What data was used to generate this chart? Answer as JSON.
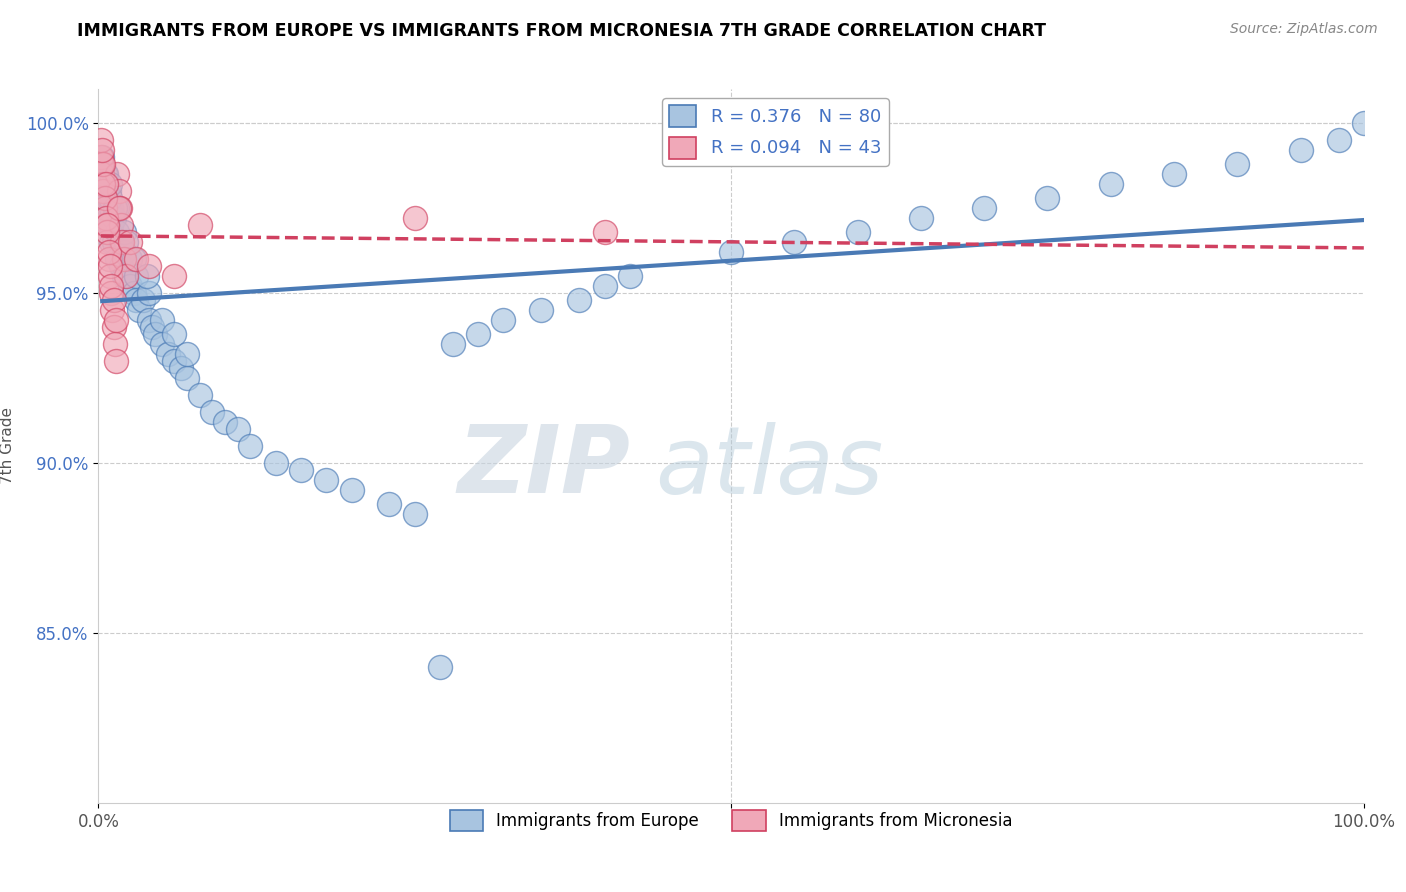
{
  "title": "IMMIGRANTS FROM EUROPE VS IMMIGRANTS FROM MICRONESIA 7TH GRADE CORRELATION CHART",
  "source": "Source: ZipAtlas.com",
  "ylabel": "7th Grade",
  "xlim": [
    0,
    1.0
  ],
  "ylim": [
    0.8,
    1.01
  ],
  "yticks": [
    0.85,
    0.9,
    0.95,
    1.0
  ],
  "ytick_labels": [
    "85.0%",
    "90.0%",
    "95.0%",
    "100.0%"
  ],
  "legend_europe_label": "Immigrants from Europe",
  "legend_micronesia_label": "Immigrants from Micronesia",
  "R_europe": 0.376,
  "N_europe": 80,
  "R_micronesia": 0.094,
  "N_micronesia": 43,
  "color_europe": "#a8c4e0",
  "color_micronesia": "#f0a8b8",
  "color_europe_line": "#4a7ab5",
  "color_micronesia_line": "#d04060",
  "watermark_zip": "ZIP",
  "watermark_atlas": "atlas",
  "europe_x": [
    0.005,
    0.005,
    0.005,
    0.008,
    0.008,
    0.008,
    0.01,
    0.01,
    0.01,
    0.012,
    0.012,
    0.015,
    0.015,
    0.015,
    0.018,
    0.018,
    0.02,
    0.02,
    0.02,
    0.022,
    0.025,
    0.025,
    0.028,
    0.03,
    0.03,
    0.032,
    0.035,
    0.04,
    0.04,
    0.042,
    0.045,
    0.05,
    0.05,
    0.055,
    0.06,
    0.06,
    0.065,
    0.07,
    0.07,
    0.08,
    0.09,
    0.1,
    0.11,
    0.12,
    0.14,
    0.16,
    0.18,
    0.2,
    0.23,
    0.25,
    0.28,
    0.3,
    0.32,
    0.35,
    0.38,
    0.4,
    0.42,
    0.5,
    0.55,
    0.6,
    0.65,
    0.7,
    0.75,
    0.8,
    0.85,
    0.9,
    0.95,
    0.98,
    1.0,
    0.003,
    0.003,
    0.006,
    0.006,
    0.009,
    0.009,
    0.013,
    0.022,
    0.028,
    0.038,
    0.27
  ],
  "europe_y": [
    0.975,
    0.98,
    0.985,
    0.97,
    0.975,
    0.98,
    0.965,
    0.97,
    0.975,
    0.965,
    0.972,
    0.96,
    0.968,
    0.975,
    0.958,
    0.965,
    0.955,
    0.962,
    0.968,
    0.955,
    0.952,
    0.96,
    0.95,
    0.948,
    0.955,
    0.945,
    0.948,
    0.942,
    0.95,
    0.94,
    0.938,
    0.935,
    0.942,
    0.932,
    0.93,
    0.938,
    0.928,
    0.925,
    0.932,
    0.92,
    0.915,
    0.912,
    0.91,
    0.905,
    0.9,
    0.898,
    0.895,
    0.892,
    0.888,
    0.885,
    0.935,
    0.938,
    0.942,
    0.945,
    0.948,
    0.952,
    0.955,
    0.962,
    0.965,
    0.968,
    0.972,
    0.975,
    0.978,
    0.982,
    0.985,
    0.988,
    0.992,
    0.995,
    1.0,
    0.985,
    0.99,
    0.98,
    0.985,
    0.978,
    0.982,
    0.975,
    0.965,
    0.96,
    0.955,
    0.84
  ],
  "micronesia_x": [
    0.002,
    0.003,
    0.004,
    0.005,
    0.006,
    0.007,
    0.008,
    0.009,
    0.01,
    0.011,
    0.012,
    0.013,
    0.014,
    0.015,
    0.016,
    0.017,
    0.018,
    0.019,
    0.02,
    0.022,
    0.003,
    0.004,
    0.005,
    0.006,
    0.007,
    0.008,
    0.009,
    0.01,
    0.012,
    0.014,
    0.002,
    0.004,
    0.006,
    0.016,
    0.003,
    0.007,
    0.025,
    0.03,
    0.04,
    0.06,
    0.08,
    0.25,
    0.4
  ],
  "micronesia_y": [
    0.99,
    0.985,
    0.98,
    0.975,
    0.97,
    0.965,
    0.96,
    0.955,
    0.95,
    0.945,
    0.94,
    0.935,
    0.93,
    0.985,
    0.98,
    0.975,
    0.97,
    0.965,
    0.96,
    0.955,
    0.988,
    0.982,
    0.978,
    0.972,
    0.968,
    0.962,
    0.958,
    0.952,
    0.948,
    0.942,
    0.995,
    0.988,
    0.982,
    0.975,
    0.992,
    0.97,
    0.965,
    0.96,
    0.958,
    0.955,
    0.97,
    0.972,
    0.968
  ]
}
